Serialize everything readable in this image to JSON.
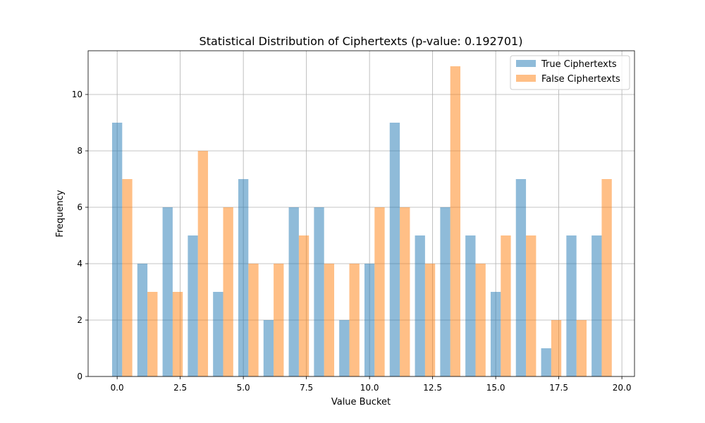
{
  "chart_data": {
    "type": "bar",
    "title": "Statistical Distribution of Ciphertexts (p-value: 0.192701)",
    "xlabel": "Value Bucket",
    "ylabel": "Frequency",
    "x": [
      0,
      1,
      2,
      3,
      4,
      5,
      6,
      7,
      8,
      9,
      10,
      11,
      12,
      13,
      14,
      15,
      16,
      17,
      18,
      19
    ],
    "xlim": [
      -1.15,
      20.5
    ],
    "ylim": [
      0,
      11.55
    ],
    "xticks": [
      0.0,
      2.5,
      5.0,
      7.5,
      10.0,
      12.5,
      15.0,
      17.5,
      20.0
    ],
    "xtick_labels": [
      "0.0",
      "2.5",
      "5.0",
      "7.5",
      "10.0",
      "12.5",
      "15.0",
      "17.5",
      "20.0"
    ],
    "yticks": [
      0,
      2,
      4,
      6,
      8,
      10
    ],
    "ytick_labels": [
      "0",
      "2",
      "4",
      "6",
      "8",
      "10"
    ],
    "grid": true,
    "legend_position": "top-right",
    "series": [
      {
        "name": "True Ciphertexts",
        "color": "#1f77b4",
        "alpha": 0.5,
        "values": [
          9,
          4,
          6,
          5,
          3,
          7,
          2,
          6,
          6,
          2,
          4,
          9,
          5,
          6,
          5,
          3,
          7,
          1,
          5,
          5
        ]
      },
      {
        "name": "False Ciphertexts",
        "color": "#ff7f0e",
        "alpha": 0.5,
        "values": [
          7,
          3,
          3,
          8,
          6,
          4,
          4,
          5,
          4,
          4,
          6,
          6,
          4,
          11,
          4,
          5,
          5,
          2,
          2,
          7
        ]
      }
    ]
  }
}
